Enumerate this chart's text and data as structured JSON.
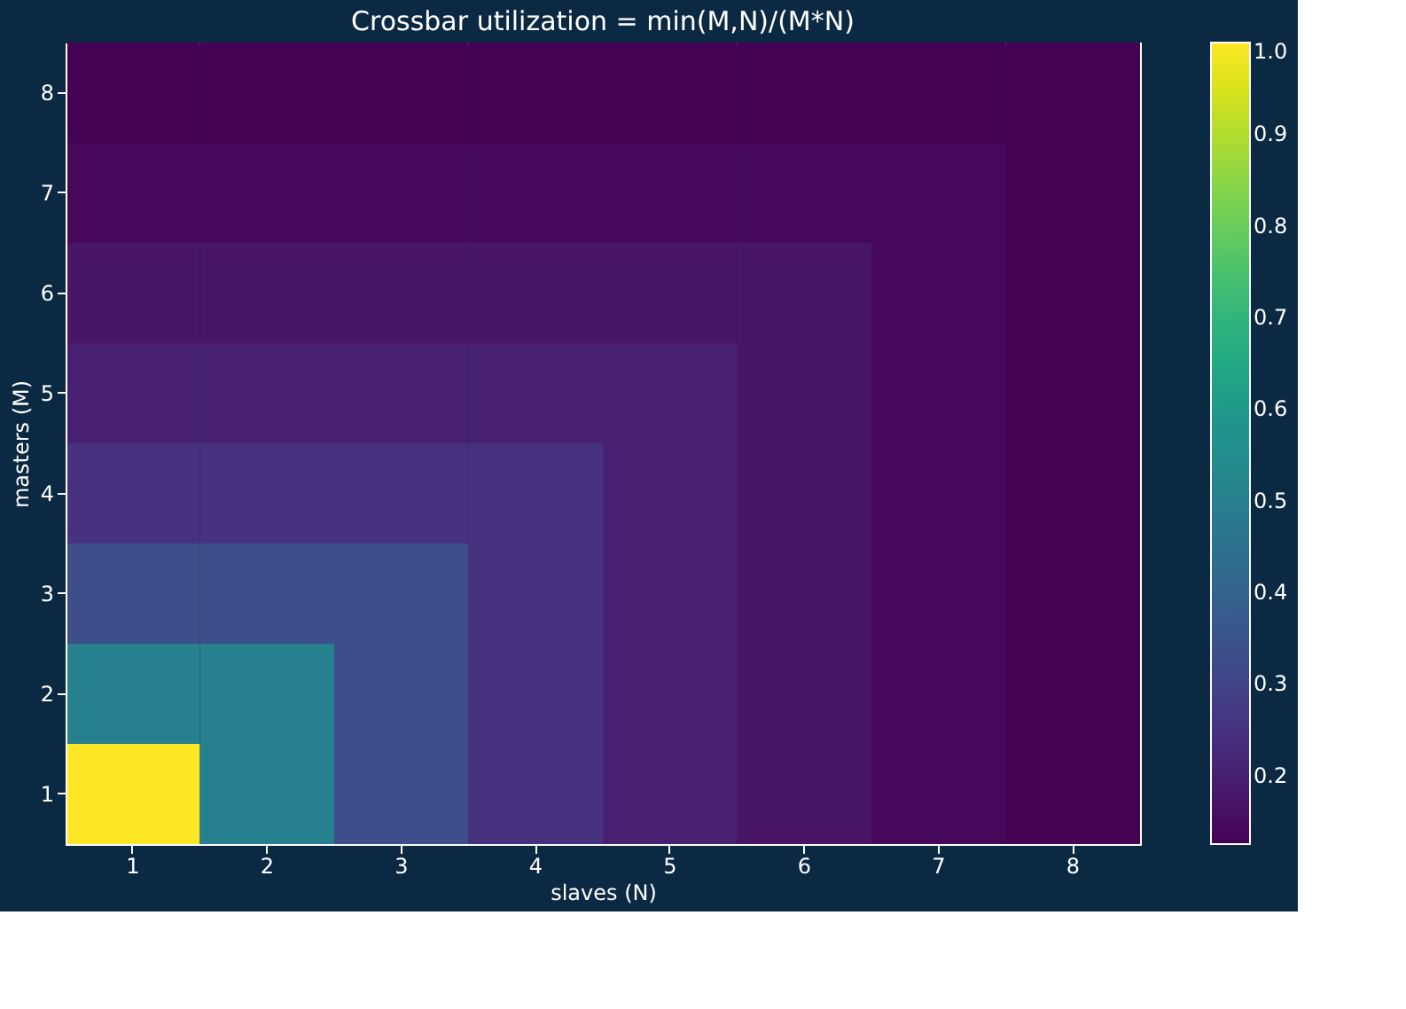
{
  "chart_data": {
    "type": "heatmap",
    "title": "Crossbar utilization = min(M,N)/(M*N)",
    "xlabel": "slaves (N)",
    "ylabel": "masters (M)",
    "categories": [
      "1",
      "2",
      "3",
      "4",
      "5",
      "6",
      "7",
      "8"
    ],
    "y_categories": [
      "8",
      "7",
      "6",
      "5",
      "4",
      "3",
      "2",
      "1"
    ],
    "cells": [
      [
        0.13,
        0.13,
        0.13,
        0.13,
        0.13,
        0.13,
        0.13,
        0.13
      ],
      [
        0.14,
        0.14,
        0.14,
        0.14,
        0.14,
        0.14,
        0.14,
        0.13
      ],
      [
        0.17,
        0.17,
        0.17,
        0.17,
        0.17,
        0.17,
        0.14,
        0.13
      ],
      [
        0.2,
        0.2,
        0.2,
        0.2,
        0.2,
        0.17,
        0.14,
        0.13
      ],
      [
        0.25,
        0.25,
        0.25,
        0.25,
        0.2,
        0.17,
        0.14,
        0.13
      ],
      [
        0.33,
        0.33,
        0.33,
        0.25,
        0.2,
        0.17,
        0.14,
        0.13
      ],
      [
        0.5,
        0.5,
        0.33,
        0.25,
        0.2,
        0.17,
        0.14,
        0.13
      ],
      [
        1,
        0.5,
        0.33,
        0.25,
        0.2,
        0.17,
        0.14,
        0.13
      ]
    ],
    "clim": [
      0.125,
      1
    ],
    "cticks": [
      0.2,
      0.3,
      0.4,
      0.5,
      0.6,
      0.7,
      0.8,
      0.9,
      {
        "value": 1,
        "label": "1.0"
      }
    ]
  }
}
